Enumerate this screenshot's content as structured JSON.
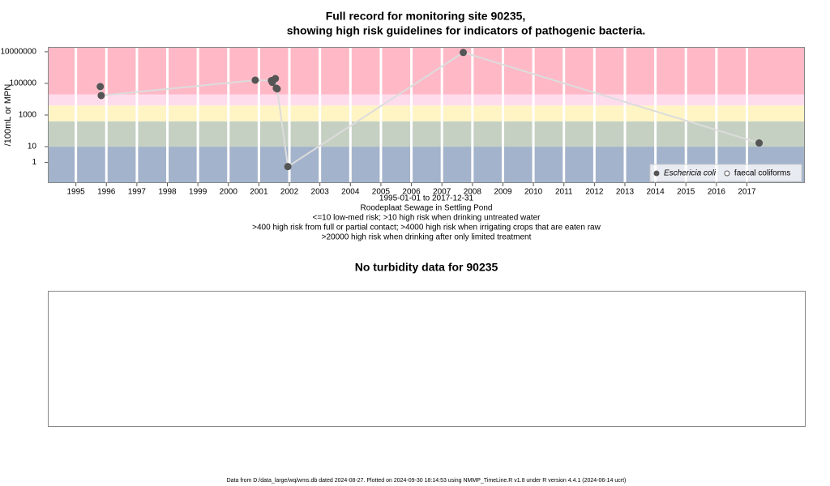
{
  "chart_data": [
    {
      "type": "line",
      "title": [
        "Full record for monitoring site 90235,",
        "showing high risk guidelines for indicators of pathogenic bacteria."
      ],
      "ylabel": "/100mL or MPN",
      "notes": [
        "1995-01-01 to 2017-12-31",
        "Roodeplaat Sewage in Settling Pond",
        "<=10 low-med risk; >10 high risk when drinking untreated water",
        ">400 high risk from full or partial contact; >4000 high risk when irrigating crops that are eaten raw",
        ">20000 high risk when drinking after only limited treatment"
      ],
      "log_y": true,
      "ylim": [
        0.05,
        20000000
      ],
      "yticks": [
        1,
        10,
        1000,
        100000,
        10000000
      ],
      "xlim": [
        1994.08,
        2018.9
      ],
      "xticks": [
        1995,
        1996,
        1997,
        1998,
        1999,
        2000,
        2001,
        2002,
        2003,
        2004,
        2005,
        2006,
        2007,
        2008,
        2009,
        2010,
        2011,
        2012,
        2013,
        2014,
        2015,
        2016,
        2017
      ],
      "risk_thresholds": [
        10,
        400,
        4000,
        20000
      ],
      "band_colors": [
        "#a3b3cb",
        "#c5d0c3",
        "#fff4c4",
        "#ffdcec",
        "#ffb9c6"
      ],
      "line_color": "#dcdcdc",
      "legend": "bottom-right",
      "series": [
        {
          "name": "Eschericia coli",
          "color": "#555555",
          "filled": true,
          "x": [
            1995.8,
            1995.83,
            2000.88,
            2001.41,
            2001.44,
            2001.54,
            2001.57,
            2001.6,
            2001.95,
            2007.7,
            2017.4
          ],
          "values": [
            63000,
            17000,
            160000,
            150000,
            115000,
            200000,
            50000,
            45000,
            0.55,
            9000000,
            17
          ]
        },
        {
          "name": "faecal coliforms",
          "color": "#555555",
          "filled": false,
          "x": [],
          "values": []
        }
      ]
    },
    {
      "type": "line",
      "title": [
        "No turbidity data for 90235"
      ]
    }
  ],
  "footer": "Data from D:/data_large/wq/wms.db dated 2024-08-27. Plotted on 2024-09-30 18:14:53 using NMMP_TimeLine.R v1.8 under R version 4.4.1 (2024-06-14 ucrt)"
}
